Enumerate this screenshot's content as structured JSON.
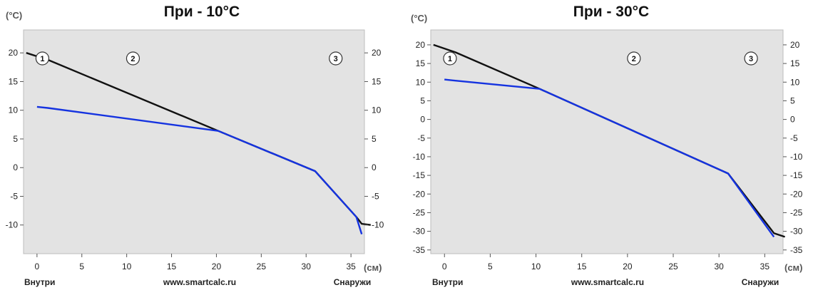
{
  "chart_data": [
    {
      "type": "line",
      "title": "При - 10°C",
      "y_unit": "(°C)",
      "x_unit": "(см)",
      "inside_label": "Внутри",
      "outside_label": "Снаружи",
      "watermark": "www.smartcalc.ru",
      "xlim": [
        -1.5,
        36.5
      ],
      "ylim": [
        -15,
        24
      ],
      "x_ticks": [
        0,
        5,
        10,
        15,
        20,
        25,
        30,
        35
      ],
      "y_ticks": [
        20,
        15,
        10,
        5,
        0,
        -5,
        -10
      ],
      "layers": [
        {
          "label": "1",
          "from": 0,
          "to": 1.2,
          "fill": "#e0e0e0",
          "pattern": "plaster"
        },
        {
          "label": "2",
          "from": 1.2,
          "to": 20.2,
          "fill": "#fbf58a",
          "pattern": "concrete"
        },
        {
          "label": "",
          "from": 20.2,
          "to": 31.0,
          "fill": "#7fc3c6",
          "pattern": "hatch"
        },
        {
          "label": "3",
          "from": 31.0,
          "to": 35.6,
          "fill": "#8ac9cd",
          "pattern": "insulation"
        },
        {
          "label": "",
          "from": 35.6,
          "to": 36.2,
          "fill": "#fbf58a",
          "pattern": "insulation"
        }
      ],
      "series": [
        {
          "color": "#111111",
          "x": [
            -1.2,
            1.2,
            20.2,
            31.0,
            35.6,
            36.2,
            37.2
          ],
          "y": [
            20.0,
            18.8,
            6.4,
            -0.6,
            -8.6,
            -9.8,
            -10.0
          ]
        },
        {
          "color": "#1533e0",
          "x": [
            0.0,
            1.2,
            20.2,
            31.0,
            35.6,
            36.2
          ],
          "y": [
            10.6,
            10.4,
            6.4,
            -0.6,
            -8.6,
            -11.6
          ]
        }
      ]
    },
    {
      "type": "line",
      "title": "При - 30°C",
      "y_unit": "(°C)",
      "x_unit": "(см)",
      "inside_label": "Внутри",
      "outside_label": "Снаружи",
      "watermark": "www.smartcalc.ru",
      "xlim": [
        -1.5,
        37
      ],
      "ylim": [
        -36,
        24
      ],
      "x_ticks": [
        0,
        5,
        10,
        15,
        20,
        25,
        30,
        35
      ],
      "y_ticks": [
        20,
        15,
        10,
        5,
        0,
        -5,
        -10,
        -15,
        -20,
        -25,
        -30,
        -35
      ],
      "layers": [
        {
          "label": "1",
          "from": 0,
          "to": 1.2,
          "fill": "#e0e0e0",
          "pattern": "plaster"
        },
        {
          "label": "",
          "from": 1.2,
          "to": 10.4,
          "fill": "#fbf58a",
          "pattern": "concrete"
        },
        {
          "label": "2",
          "from": 10.4,
          "to": 31.0,
          "fill": "#7fc3c6",
          "pattern": "hatch"
        },
        {
          "label": "3",
          "from": 31.0,
          "to": 36.0,
          "fill": "#8ac9cd",
          "pattern": "insulation"
        }
      ],
      "series": [
        {
          "color": "#111111",
          "x": [
            -1.2,
            1.2,
            10.4,
            31.0,
            36.0,
            37.2
          ],
          "y": [
            20.0,
            18.0,
            8.2,
            -14.5,
            -30.5,
            -31.5
          ]
        },
        {
          "color": "#1533e0",
          "x": [
            0.0,
            1.2,
            10.4,
            31.0,
            36.0
          ],
          "y": [
            10.7,
            10.4,
            8.2,
            -14.5,
            -31.5
          ]
        }
      ]
    }
  ]
}
